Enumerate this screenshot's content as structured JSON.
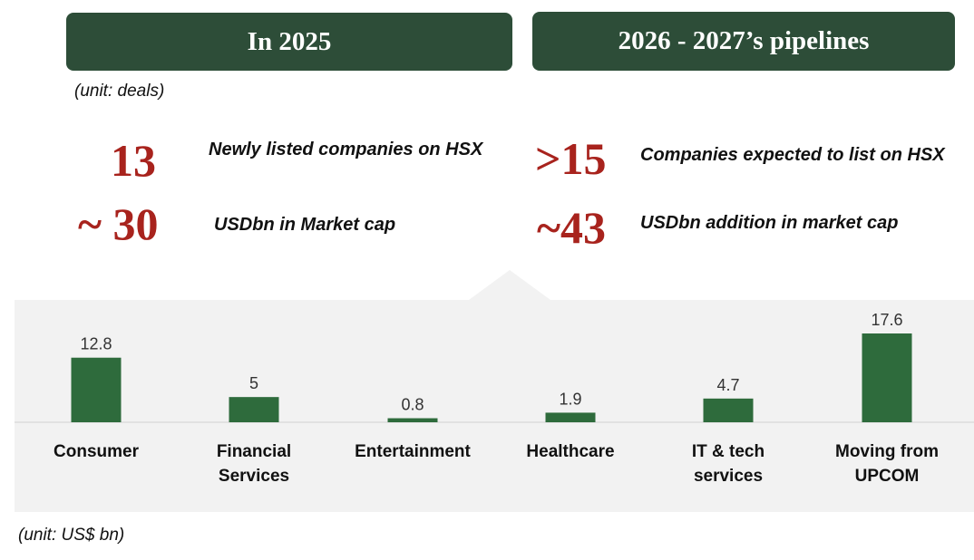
{
  "left_header": "In 2025",
  "right_header": "2026 - 2027’s pipelines",
  "unit_deals": "(unit: deals)",
  "unit_bn": "(unit: US$ bn)",
  "stats_2025": [
    {
      "value": "13",
      "label": "Newly listed companies on HSX"
    },
    {
      "value": "~ 30",
      "label": "USDbn in Market cap"
    }
  ],
  "stats_pipeline": [
    {
      "value": ">15",
      "label": "Companies expected to list on HSX"
    },
    {
      "value": "~43",
      "label": "USDbn addition in market cap"
    }
  ],
  "colors": {
    "header_bg": "#2d4d38",
    "accent_red": "#a8231d",
    "bar": "#2e6b3c",
    "panel_bg": "#f2f2f2"
  },
  "chart_data": {
    "type": "bar",
    "categories": [
      [
        "Consumer"
      ],
      [
        "Financial",
        "Services"
      ],
      [
        "Entertainment"
      ],
      [
        "Healthcare"
      ],
      [
        "IT & tech",
        "services"
      ],
      [
        "Moving from",
        "UPCOM"
      ]
    ],
    "values": [
      12.8,
      5,
      0.8,
      1.9,
      4.7,
      17.6
    ],
    "data_labels": [
      "12.8",
      "5",
      "0.8",
      "1.9",
      "4.7",
      "17.6"
    ],
    "ylim": [
      0,
      17.6
    ],
    "grid": false,
    "legend": "none"
  }
}
